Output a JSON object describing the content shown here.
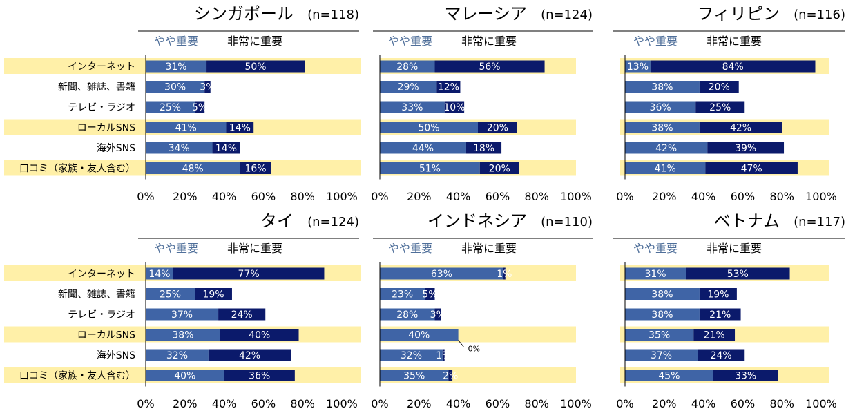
{
  "colors": {
    "somewhat": "#3f64a6",
    "very": "#0b1a6b",
    "highlight": "#fff0a8",
    "axis": "#000000",
    "legend_somewhat": "#4f6f9a"
  },
  "legend": {
    "somewhat": "やや重要",
    "very": "非常に重要"
  },
  "categories": [
    "インターネット",
    "新聞、雑誌、書籍",
    "テレビ・ラジオ",
    "ローカルSNS",
    "海外SNS",
    "口コミ（家族・友人含む）"
  ],
  "highlighted_rows": [
    0,
    3,
    5
  ],
  "x_ticks": [
    "0%",
    "20%",
    "40%",
    "60%",
    "80%",
    "100%"
  ],
  "chart_data": [
    {
      "type": "bar",
      "stacked": true,
      "orientation": "horizontal",
      "title": "シンガポール",
      "sample": "(n=118)",
      "categories": [
        "インターネット",
        "新聞、雑誌、書籍",
        "テレビ・ラジオ",
        "ローカルSNS",
        "海外SNS",
        "口コミ（家族・友人含む）"
      ],
      "series": [
        {
          "name": "やや重要",
          "values": [
            31,
            30,
            25,
            41,
            34,
            48
          ]
        },
        {
          "name": "非常に重要",
          "values": [
            50,
            3,
            5,
            14,
            14,
            16
          ]
        }
      ],
      "xlim": [
        0,
        100
      ]
    },
    {
      "type": "bar",
      "stacked": true,
      "orientation": "horizontal",
      "title": "マレーシア",
      "sample": "(n=124)",
      "categories": [
        "インターネット",
        "新聞、雑誌、書籍",
        "テレビ・ラジオ",
        "ローカルSNS",
        "海外SNS",
        "口コミ（家族・友人含む）"
      ],
      "series": [
        {
          "name": "やや重要",
          "values": [
            28,
            29,
            33,
            50,
            44,
            51
          ]
        },
        {
          "name": "非常に重要",
          "values": [
            56,
            12,
            10,
            20,
            18,
            20
          ]
        }
      ],
      "xlim": [
        0,
        100
      ]
    },
    {
      "type": "bar",
      "stacked": true,
      "orientation": "horizontal",
      "title": "フィリピン",
      "sample": "(n=116)",
      "categories": [
        "インターネット",
        "新聞、雑誌、書籍",
        "テレビ・ラジオ",
        "ローカルSNS",
        "海外SNS",
        "口コミ（家族・友人含む）"
      ],
      "series": [
        {
          "name": "やや重要",
          "values": [
            13,
            38,
            36,
            38,
            42,
            41
          ]
        },
        {
          "name": "非常に重要",
          "values": [
            84,
            20,
            25,
            42,
            39,
            47
          ]
        }
      ],
      "xlim": [
        0,
        100
      ]
    },
    {
      "type": "bar",
      "stacked": true,
      "orientation": "horizontal",
      "title": "タイ",
      "sample": "(n=124)",
      "categories": [
        "インターネット",
        "新聞、雑誌、書籍",
        "テレビ・ラジオ",
        "ローカルSNS",
        "海外SNS",
        "口コミ（家族・友人含む）"
      ],
      "series": [
        {
          "name": "やや重要",
          "values": [
            14,
            25,
            37,
            38,
            32,
            40
          ]
        },
        {
          "name": "非常に重要",
          "values": [
            77,
            19,
            24,
            40,
            42,
            36
          ]
        }
      ],
      "xlim": [
        0,
        100
      ]
    },
    {
      "type": "bar",
      "stacked": true,
      "orientation": "horizontal",
      "title": "インドネシア",
      "sample": "(n=110)",
      "categories": [
        "インターネット",
        "新聞、雑誌、書籍",
        "テレビ・ラジオ",
        "ローカルSNS",
        "海外SNS",
        "口コミ（家族・友人含む）"
      ],
      "series": [
        {
          "name": "やや重要",
          "values": [
            63,
            23,
            28,
            40,
            32,
            35
          ]
        },
        {
          "name": "非常に重要",
          "values": [
            1,
            5,
            3,
            0,
            1,
            2
          ]
        }
      ],
      "annotations": [
        {
          "row": 3,
          "text": "0%"
        }
      ],
      "xlim": [
        0,
        100
      ]
    },
    {
      "type": "bar",
      "stacked": true,
      "orientation": "horizontal",
      "title": "ベトナム",
      "sample": "(n=117)",
      "categories": [
        "インターネット",
        "新聞、雑誌、書籍",
        "テレビ・ラジオ",
        "ローカルSNS",
        "海外SNS",
        "口コミ（家族・友人含む）"
      ],
      "series": [
        {
          "name": "やや重要",
          "values": [
            31,
            38,
            38,
            35,
            37,
            45
          ]
        },
        {
          "name": "非常に重要",
          "values": [
            53,
            19,
            21,
            21,
            24,
            33
          ]
        }
      ],
      "xlim": [
        0,
        100
      ]
    }
  ]
}
